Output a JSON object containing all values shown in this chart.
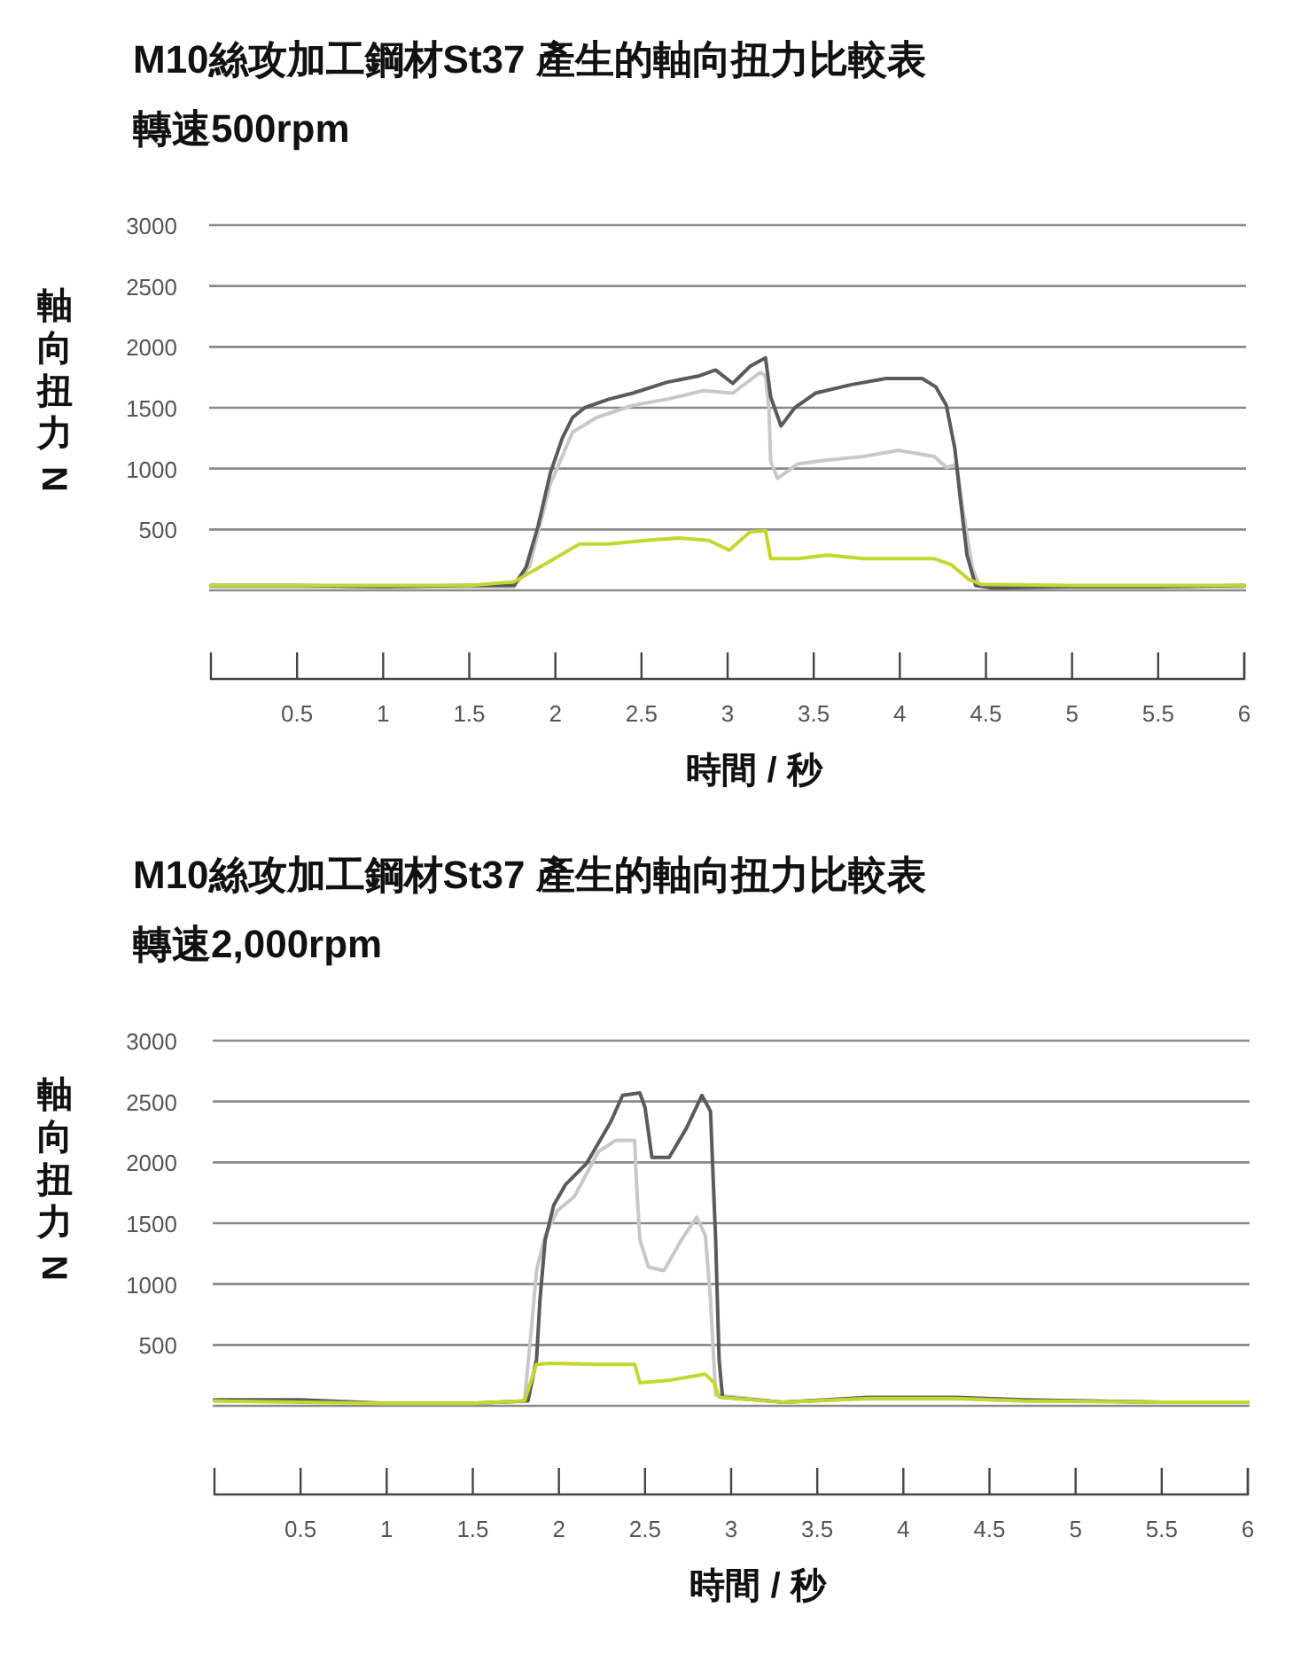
{
  "chart_data": [
    {
      "type": "line",
      "title": "M10絲攻加工鋼材St37 產生的軸向扭力比較表",
      "subtitle": "轉速500rpm",
      "xlabel": "時間 / 秒",
      "ylabel": "軸向扭力 N",
      "xlim": [
        0,
        6
      ],
      "xticks": [
        0.5,
        1,
        1.5,
        2,
        2.5,
        3,
        3.5,
        4,
        4.5,
        5,
        5.5,
        6
      ],
      "ylim": [
        0,
        3000
      ],
      "yticks": [
        {
          "value": 0,
          "label": null
        },
        500,
        1000,
        1500,
        2000,
        2500,
        3000
      ],
      "grid": "y",
      "series": [
        {
          "color": "#c8c8c8",
          "x": [
            0,
            0.5,
            1,
            1.5,
            1.76,
            1.85,
            1.97,
            2.1,
            2.24,
            2.45,
            2.65,
            2.86,
            3.03,
            3.19,
            3.22,
            3.24,
            3.25,
            3.29,
            3.41,
            3.58,
            3.79,
            3.99,
            4.2,
            4.27,
            4.33,
            4.37,
            4.42,
            4.46,
            5,
            5.5,
            6
          ],
          "values": [
            30,
            30,
            30,
            30,
            30,
            200,
            870,
            1300,
            1420,
            1520,
            1570,
            1640,
            1620,
            1790,
            1760,
            1500,
            1060,
            920,
            1040,
            1070,
            1100,
            1150,
            1100,
            1010,
            1030,
            630,
            190,
            40,
            30,
            30,
            30
          ]
        },
        {
          "color": "#5a5a5a",
          "x": [
            0,
            0.5,
            1,
            1.5,
            1.76,
            1.83,
            1.9,
            1.97,
            2.04,
            2.1,
            2.17,
            2.31,
            2.45,
            2.65,
            2.83,
            2.93,
            3.03,
            3.13,
            3.22,
            3.25,
            3.31,
            3.39,
            3.51,
            3.72,
            3.92,
            4.13,
            4.21,
            4.27,
            4.32,
            4.35,
            4.39,
            4.44,
            4.54,
            5,
            5.5,
            6
          ],
          "values": [
            40,
            40,
            30,
            40,
            40,
            190,
            530,
            960,
            1250,
            1420,
            1500,
            1570,
            1620,
            1710,
            1760,
            1810,
            1700,
            1840,
            1910,
            1590,
            1350,
            1500,
            1620,
            1690,
            1740,
            1740,
            1670,
            1520,
            1160,
            770,
            290,
            40,
            20,
            30,
            30,
            40
          ]
        },
        {
          "color": "#c6d630",
          "x": [
            0,
            0.5,
            1,
            1.5,
            1.76,
            1.97,
            2.14,
            2.31,
            2.52,
            2.72,
            2.89,
            3.01,
            3.13,
            3.22,
            3.25,
            3.41,
            3.58,
            3.79,
            4.03,
            4.2,
            4.3,
            4.4,
            4.47,
            5,
            5.5,
            6
          ],
          "values": [
            40,
            40,
            40,
            40,
            70,
            240,
            380,
            380,
            410,
            430,
            410,
            330,
            480,
            490,
            260,
            260,
            290,
            260,
            260,
            260,
            210,
            90,
            50,
            40,
            40,
            40
          ]
        }
      ]
    },
    {
      "type": "line",
      "title": "M10絲攻加工鋼材St37 產生的軸向扭力比較表",
      "subtitle": "轉速2,000rpm",
      "xlabel": "時間 / 秒",
      "ylabel": "軸向扭力 N",
      "xlim": [
        0,
        6
      ],
      "xticks": [
        0.5,
        1,
        1.5,
        2,
        2.5,
        3,
        3.5,
        4,
        4.5,
        5,
        5.5,
        6
      ],
      "ylim": [
        0,
        3000
      ],
      "yticks": [
        {
          "value": 0,
          "label": null
        },
        500,
        1000,
        1500,
        2000,
        2500,
        3000
      ],
      "grid": "y",
      "series": [
        {
          "color": "#c8c8c8",
          "x": [
            0,
            0.5,
            1,
            1.5,
            1.8,
            1.84,
            1.87,
            1.92,
            1.99,
            2.09,
            2.23,
            2.33,
            2.44,
            2.45,
            2.47,
            2.52,
            2.61,
            2.71,
            2.8,
            2.85,
            2.88,
            2.91,
            3.3,
            3.8,
            4.3,
            4.7,
            5.5,
            6
          ],
          "values": [
            40,
            40,
            20,
            20,
            40,
            630,
            1110,
            1400,
            1600,
            1720,
            2090,
            2180,
            2180,
            1840,
            1360,
            1140,
            1110,
            1360,
            1550,
            1400,
            870,
            90,
            30,
            60,
            60,
            40,
            30,
            30
          ]
        },
        {
          "color": "#5a5a5a",
          "x": [
            0,
            0.5,
            1,
            1.5,
            1.82,
            1.87,
            1.89,
            1.92,
            1.97,
            2.04,
            2.16,
            2.3,
            2.37,
            2.47,
            2.5,
            2.54,
            2.64,
            2.74,
            2.83,
            2.88,
            2.91,
            2.93,
            2.95,
            3.3,
            3.8,
            4.3,
            4.7,
            5.5,
            6
          ],
          "values": [
            50,
            50,
            20,
            20,
            40,
            380,
            870,
            1360,
            1650,
            1820,
            1990,
            2330,
            2550,
            2570,
            2450,
            2040,
            2040,
            2280,
            2550,
            2420,
            1360,
            380,
            70,
            30,
            70,
            70,
            50,
            30,
            30
          ]
        },
        {
          "color": "#c6d630",
          "x": [
            0,
            0.5,
            1,
            1.5,
            1.8,
            1.87,
            1.95,
            2.23,
            2.44,
            2.47,
            2.64,
            2.85,
            2.9,
            2.93,
            3.3,
            3.8,
            4.3,
            4.7,
            5.5,
            6
          ],
          "values": [
            40,
            30,
            20,
            20,
            40,
            340,
            350,
            340,
            340,
            190,
            210,
            260,
            190,
            70,
            30,
            60,
            60,
            40,
            30,
            30
          ]
        }
      ]
    }
  ]
}
